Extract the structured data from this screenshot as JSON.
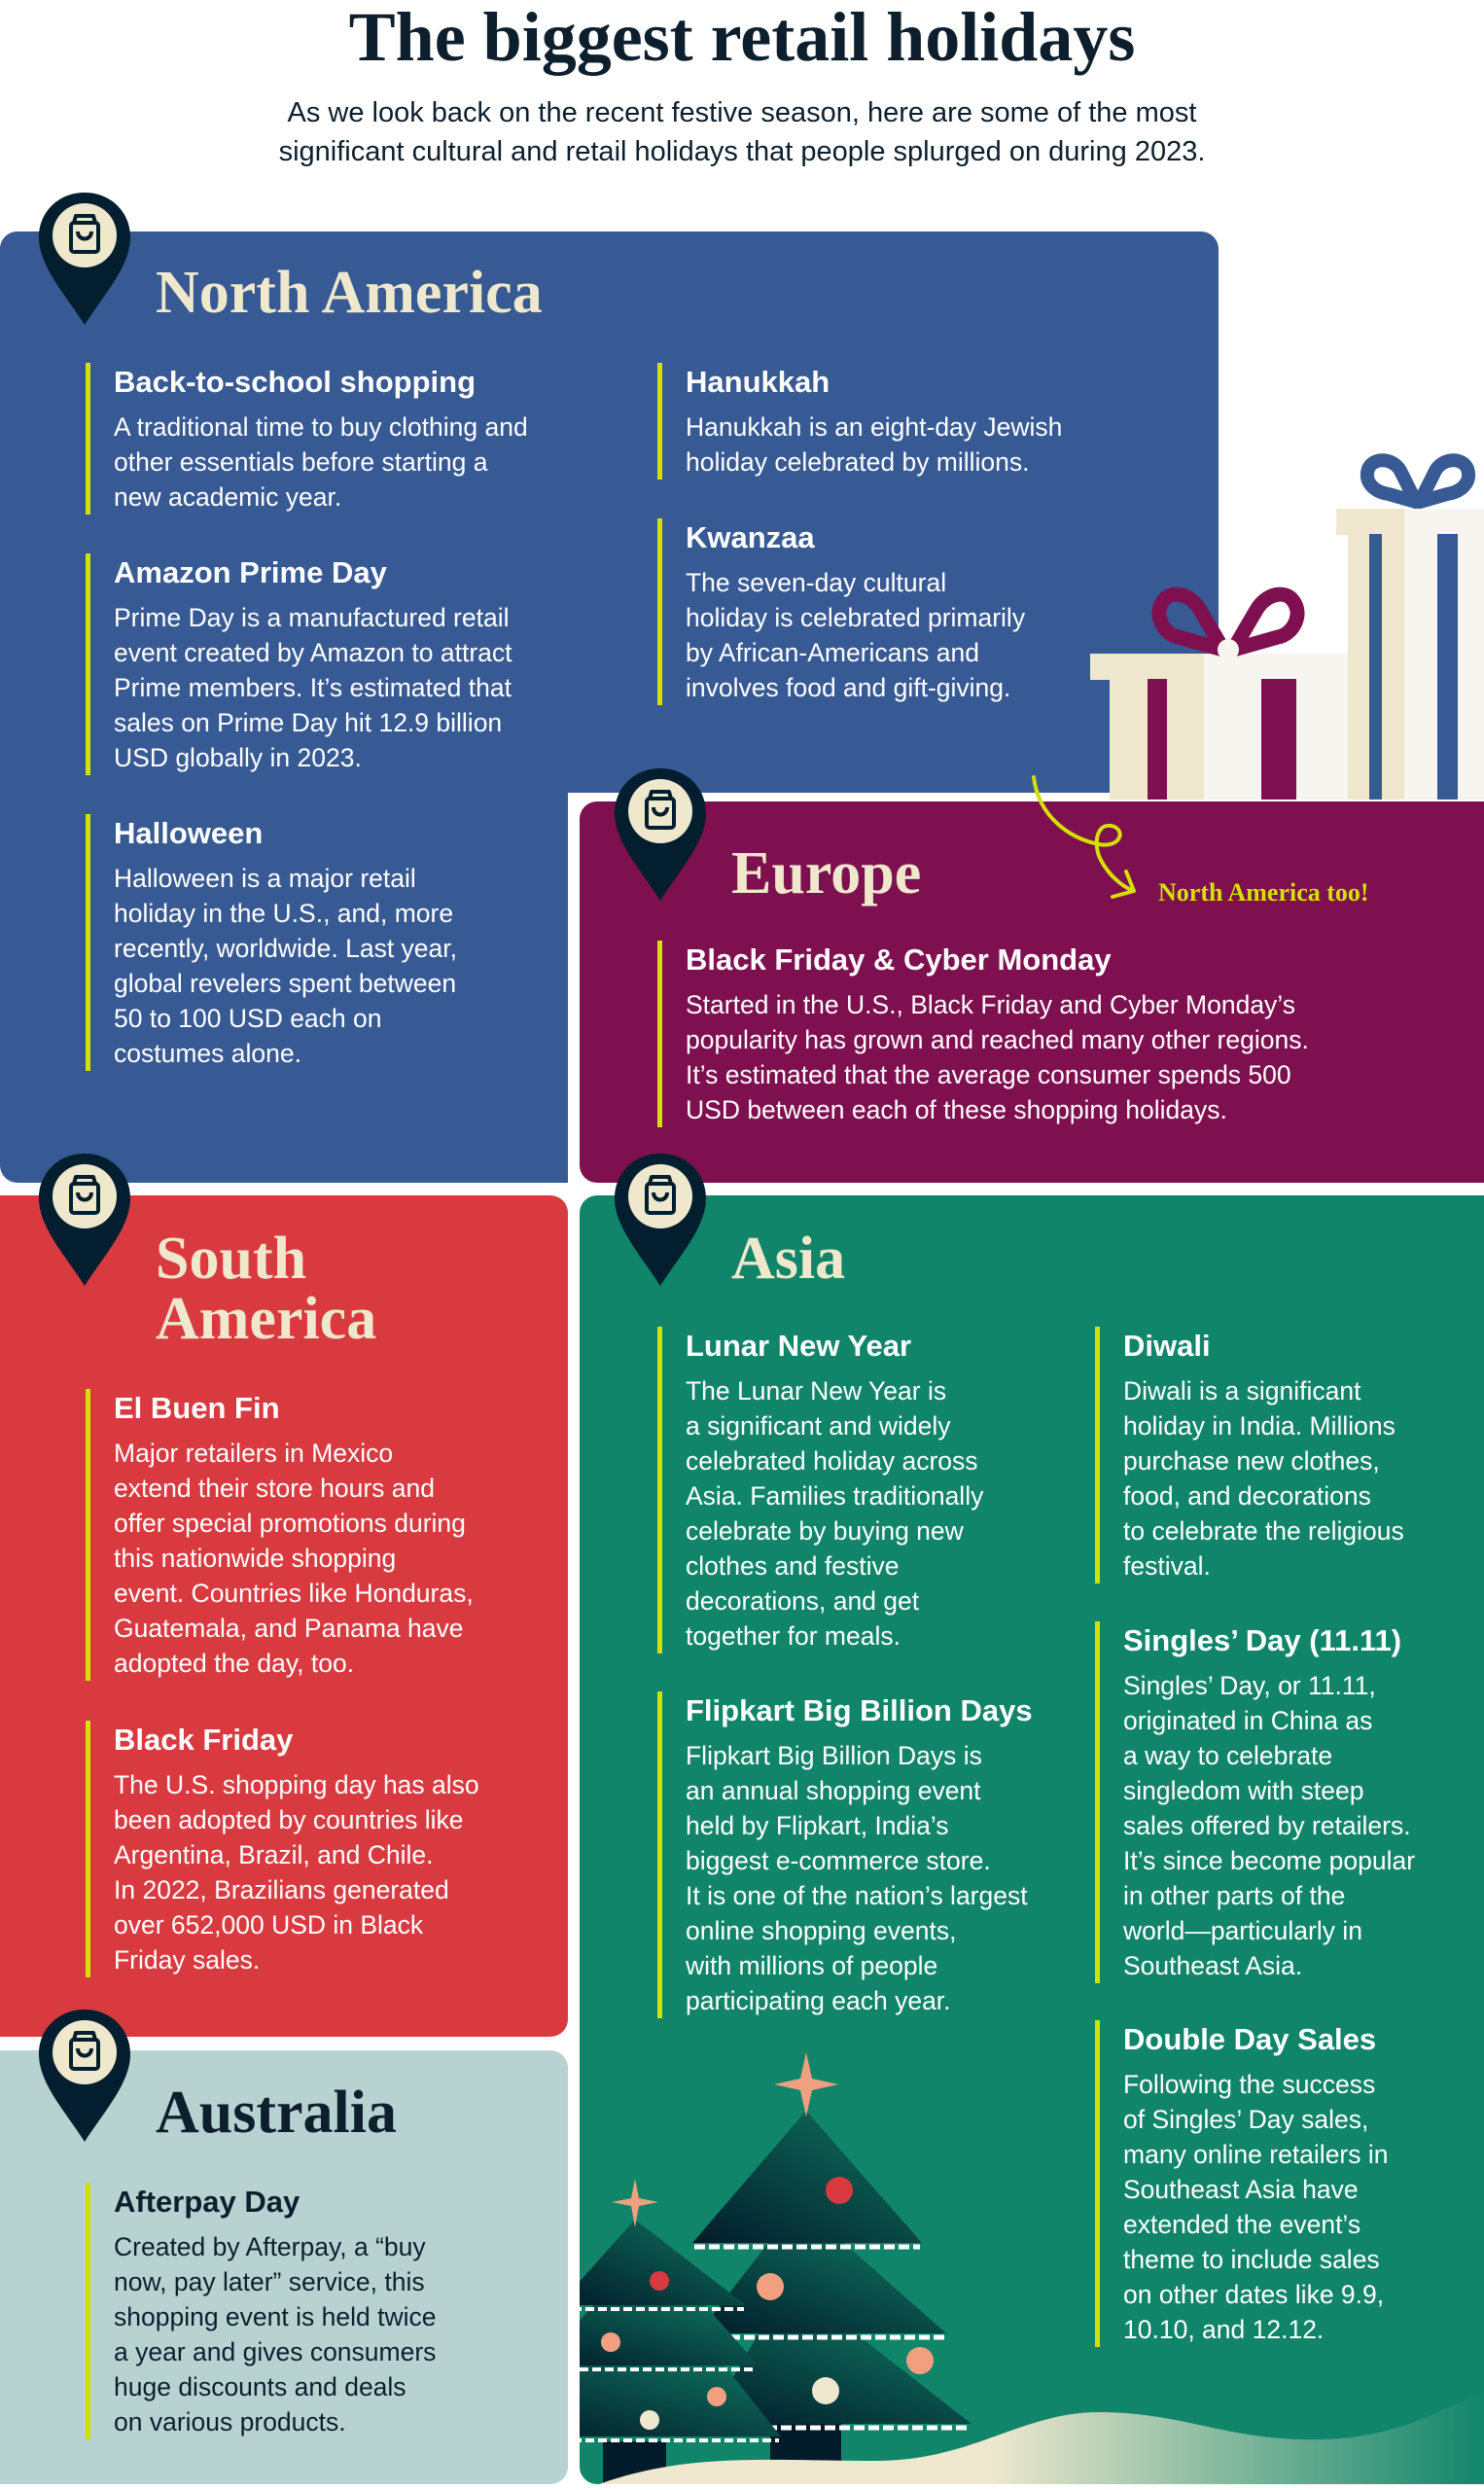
{
  "header": {
    "title": "The biggest retail holidays",
    "subtitle": "As we look back on the recent festive season, here are some of the most\nsignificant cultural and retail holidays that people splurged on during 2023."
  },
  "colors": {
    "north_america": "#385a94",
    "europe": "#7e1050",
    "south_america": "#d93a40",
    "asia": "#11856a",
    "australia": "#b8d1d1",
    "accent": "#d4e000",
    "pin": "#031e2e",
    "title_cream": "#efe8cc"
  },
  "icons": {
    "pin": "map-pin-shopping-bag-icon"
  },
  "regions": {
    "north_america": {
      "title": "North America",
      "items": [
        {
          "name": "Back-to-school shopping",
          "body": "A traditional time to buy clothing and\nother essentials before starting a\nnew academic year."
        },
        {
          "name": "Amazon Prime Day",
          "body": "Prime Day is a manufactured retail\nevent created by Amazon to attract\nPrime members. It’s estimated that\nsales on Prime Day hit 12.9 billion\nUSD globally in 2023."
        },
        {
          "name": "Halloween",
          "body": "Halloween is a major retail\nholiday in the U.S., and, more\nrecently, worldwide. Last year,\nglobal revelers spent between\n50 to 100 USD each on\ncostumes alone."
        },
        {
          "name": "Hanukkah",
          "body": "Hanukkah is an eight-day Jewish\nholiday celebrated by millions."
        },
        {
          "name": "Kwanzaa",
          "body": "The seven-day cultural\nholiday is celebrated primarily\nby African-Americans and\ninvolves food and gift-giving."
        }
      ]
    },
    "europe": {
      "title": "Europe",
      "note": "North America too!",
      "items": [
        {
          "name": "Black Friday & Cyber Monday",
          "body": "Started in the U.S., Black Friday and Cyber Monday’s\npopularity has grown and reached many other regions.\nIt’s estimated that the average consumer spends 500\nUSD between each of these shopping holidays."
        }
      ]
    },
    "south_america": {
      "title": "South\nAmerica",
      "items": [
        {
          "name": "El Buen Fin",
          "body": "Major retailers in Mexico\nextend their store hours and\noffer special promotions during\nthis nationwide shopping\nevent. Countries like Honduras,\nGuatemala, and Panama have\nadopted the day, too."
        },
        {
          "name": "Black Friday",
          "body": "The U.S. shopping day has also\nbeen adopted by countries like\nArgentina, Brazil, and Chile.\nIn 2022, Brazilians generated\nover 652,000 USD in Black\nFriday sales."
        }
      ]
    },
    "asia": {
      "title": "Asia",
      "items": [
        {
          "name": "Lunar New Year",
          "body": "The Lunar New Year is\na significant and widely\ncelebrated holiday across\nAsia. Families traditionally\ncelebrate by buying new\nclothes and festive\ndecorations, and get\ntogether for meals."
        },
        {
          "name": "Flipkart Big Billion Days",
          "body": "Flipkart Big Billion Days is\nan annual shopping event\nheld by Flipkart, India’s\nbiggest e-commerce store.\nIt is one of the nation’s largest\nonline shopping events,\nwith millions of people\nparticipating each year."
        },
        {
          "name": "Diwali",
          "body": "Diwali is a significant\nholiday in India. Millions\npurchase new clothes,\nfood, and decorations\nto celebrate the religious\nfestival."
        },
        {
          "name": "Singles’ Day (11.11)",
          "body": "Singles’ Day, or 11.11,\noriginated in China as\na way to celebrate\nsingledom with steep\nsales offered by retailers.\nIt’s since become popular\nin other parts of the\nworld—particularly in\nSoutheast Asia."
        },
        {
          "name": "Double Day Sales",
          "body": "Following the success\nof Singles’ Day sales,\nmany online retailers in\nSoutheast Asia have\nextended the event’s\ntheme to include sales\non other dates like 9.9,\n10.10, and 12.12."
        }
      ]
    },
    "australia": {
      "title": "Australia",
      "items": [
        {
          "name": "Afterpay Day",
          "body": "Created by Afterpay, a “buy\nnow, pay later” service, this\nshopping event is held twice\na year and gives consumers\nhuge discounts and deals\non various products."
        }
      ]
    }
  }
}
